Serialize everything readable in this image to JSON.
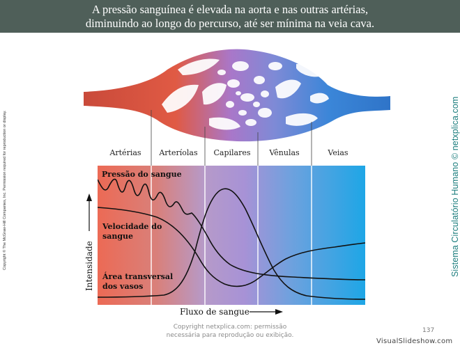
{
  "slide": {
    "title_line1": "A pressão sanguínea é elevada na aorta e nas outras artérias,",
    "title_line2": "diminuindo ao longo do percurso, até ser mínima na veia cava.",
    "copyright_vertical": "Copyright © The McGraw-Hill Companies, Inc. Permission required for reproduction or display.",
    "side_label": "Sistema Circulatório Humano © netxplica.com",
    "footer_line1": "Copyright netxplica.com: permissão",
    "footer_line2": "necessária para reprodução ou exibição.",
    "slide_number": "137",
    "watermark": "VisualSlideshow.com"
  },
  "diagram": {
    "sections": [
      "Artérias",
      "Arteríolas",
      "Capilares",
      "Vênulas",
      "Veias"
    ],
    "curve_labels": {
      "pressure": "Pressão do sangue",
      "velocity_line1": "Velocidade do",
      "velocity_line2": "sangue",
      "area_line1": "Área transversal",
      "area_line2": "dos vasos"
    },
    "y_axis_label": "Intensidade",
    "x_axis_label": "Fluxo de sangue",
    "colors": {
      "arterial": "#e8645a",
      "capillary": "#a78ad0",
      "venous": "#2f9fe0",
      "curve": "#111111"
    }
  }
}
